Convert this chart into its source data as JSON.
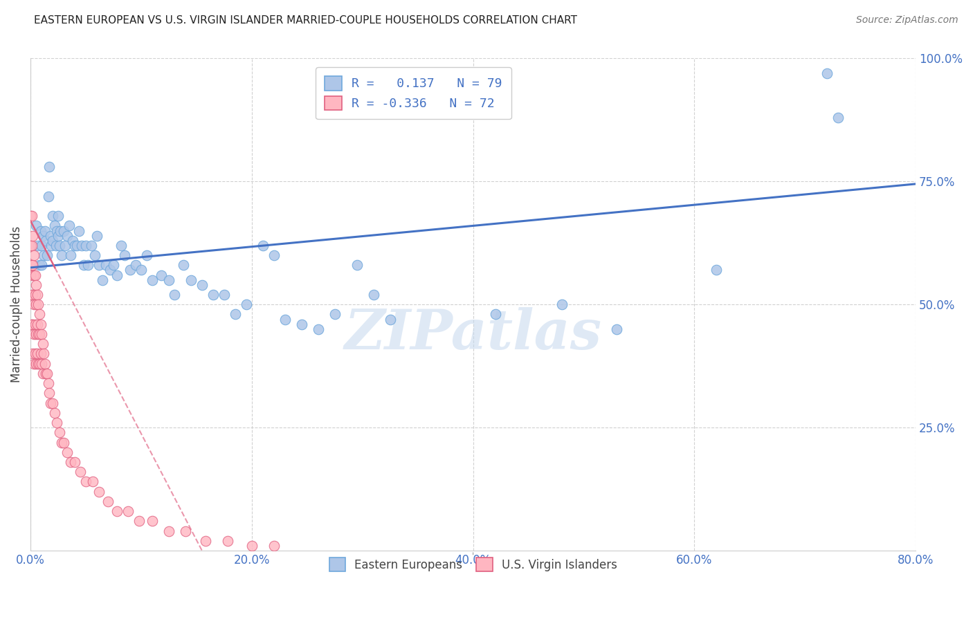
{
  "title": "EASTERN EUROPEAN VS U.S. VIRGIN ISLANDER MARRIED-COUPLE HOUSEHOLDS CORRELATION CHART",
  "source": "Source: ZipAtlas.com",
  "ylabel": "Married-couple Households",
  "xlim": [
    0,
    0.8
  ],
  "ylim": [
    0,
    1.0
  ],
  "xtick_labels": [
    "0.0%",
    "20.0%",
    "40.0%",
    "60.0%",
    "80.0%"
  ],
  "xtick_vals": [
    0.0,
    0.2,
    0.4,
    0.6,
    0.8
  ],
  "ytick_labels": [
    "25.0%",
    "50.0%",
    "75.0%",
    "100.0%"
  ],
  "ytick_vals": [
    0.25,
    0.5,
    0.75,
    1.0
  ],
  "watermark": "ZIPatlas",
  "blue_color": "#aec6e8",
  "blue_edge": "#6fa8dc",
  "pink_color": "#ffb6c1",
  "pink_edge": "#e06080",
  "blue_line_color": "#4472c4",
  "pink_line_color": "#e06080",
  "blue_line": {
    "x0": 0.0,
    "x1": 0.8,
    "y0": 0.575,
    "y1": 0.745
  },
  "pink_line": {
    "x0": 0.0,
    "x1": 0.155,
    "y0": 0.67,
    "y1": 0.0
  },
  "blue_scatter_x": [
    0.005,
    0.007,
    0.008,
    0.009,
    0.01,
    0.01,
    0.011,
    0.012,
    0.013,
    0.014,
    0.015,
    0.016,
    0.017,
    0.018,
    0.019,
    0.02,
    0.02,
    0.022,
    0.023,
    0.024,
    0.025,
    0.025,
    0.026,
    0.027,
    0.028,
    0.03,
    0.031,
    0.033,
    0.035,
    0.036,
    0.038,
    0.04,
    0.042,
    0.044,
    0.046,
    0.048,
    0.05,
    0.052,
    0.055,
    0.058,
    0.06,
    0.062,
    0.065,
    0.068,
    0.072,
    0.075,
    0.078,
    0.082,
    0.085,
    0.09,
    0.095,
    0.1,
    0.105,
    0.11,
    0.118,
    0.125,
    0.13,
    0.138,
    0.145,
    0.155,
    0.165,
    0.175,
    0.185,
    0.195,
    0.21,
    0.22,
    0.23,
    0.245,
    0.26,
    0.275,
    0.295,
    0.31,
    0.325,
    0.42,
    0.48,
    0.53,
    0.62,
    0.72,
    0.73
  ],
  "blue_scatter_y": [
    0.66,
    0.62,
    0.58,
    0.65,
    0.58,
    0.62,
    0.64,
    0.6,
    0.65,
    0.63,
    0.6,
    0.72,
    0.78,
    0.64,
    0.62,
    0.63,
    0.68,
    0.66,
    0.62,
    0.65,
    0.64,
    0.68,
    0.62,
    0.65,
    0.6,
    0.65,
    0.62,
    0.64,
    0.66,
    0.6,
    0.63,
    0.62,
    0.62,
    0.65,
    0.62,
    0.58,
    0.62,
    0.58,
    0.62,
    0.6,
    0.64,
    0.58,
    0.55,
    0.58,
    0.57,
    0.58,
    0.56,
    0.62,
    0.6,
    0.57,
    0.58,
    0.57,
    0.6,
    0.55,
    0.56,
    0.55,
    0.52,
    0.58,
    0.55,
    0.54,
    0.52,
    0.52,
    0.48,
    0.5,
    0.62,
    0.6,
    0.47,
    0.46,
    0.45,
    0.48,
    0.58,
    0.52,
    0.47,
    0.48,
    0.5,
    0.45,
    0.57,
    0.97,
    0.88
  ],
  "pink_scatter_x": [
    0.0,
    0.0,
    0.0,
    0.001,
    0.001,
    0.001,
    0.001,
    0.001,
    0.002,
    0.002,
    0.002,
    0.002,
    0.002,
    0.003,
    0.003,
    0.003,
    0.003,
    0.003,
    0.004,
    0.004,
    0.004,
    0.004,
    0.005,
    0.005,
    0.005,
    0.005,
    0.006,
    0.006,
    0.006,
    0.007,
    0.007,
    0.007,
    0.008,
    0.008,
    0.008,
    0.009,
    0.009,
    0.01,
    0.01,
    0.011,
    0.011,
    0.012,
    0.013,
    0.014,
    0.015,
    0.016,
    0.017,
    0.018,
    0.02,
    0.022,
    0.024,
    0.026,
    0.028,
    0.03,
    0.033,
    0.036,
    0.04,
    0.045,
    0.05,
    0.056,
    0.062,
    0.07,
    0.078,
    0.088,
    0.098,
    0.11,
    0.125,
    0.14,
    0.158,
    0.178,
    0.2,
    0.22
  ],
  "pink_scatter_y": [
    0.68,
    0.62,
    0.56,
    0.68,
    0.62,
    0.58,
    0.52,
    0.46,
    0.64,
    0.58,
    0.52,
    0.46,
    0.4,
    0.6,
    0.56,
    0.5,
    0.44,
    0.38,
    0.56,
    0.52,
    0.46,
    0.4,
    0.54,
    0.5,
    0.44,
    0.38,
    0.52,
    0.46,
    0.4,
    0.5,
    0.44,
    0.38,
    0.48,
    0.44,
    0.38,
    0.46,
    0.4,
    0.44,
    0.38,
    0.42,
    0.36,
    0.4,
    0.38,
    0.36,
    0.36,
    0.34,
    0.32,
    0.3,
    0.3,
    0.28,
    0.26,
    0.24,
    0.22,
    0.22,
    0.2,
    0.18,
    0.18,
    0.16,
    0.14,
    0.14,
    0.12,
    0.1,
    0.08,
    0.08,
    0.06,
    0.06,
    0.04,
    0.04,
    0.02,
    0.02,
    0.01,
    0.01
  ]
}
